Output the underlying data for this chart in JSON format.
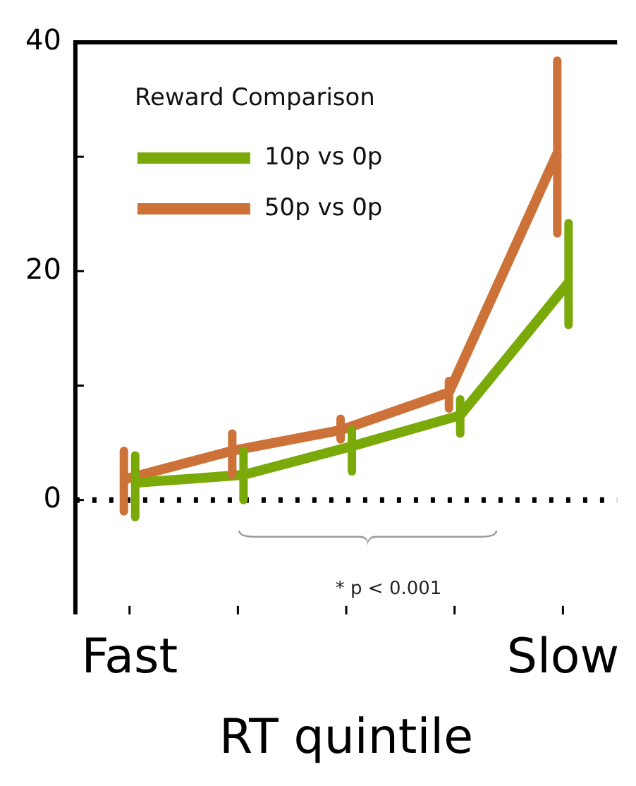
{
  "chart_data": {
    "type": "line",
    "xlabel": "RT quintile",
    "categories": [
      "Fast",
      null,
      null,
      null,
      "Slow"
    ],
    "legend_title": "Reward Comparison",
    "legend": "top left",
    "series": [
      {
        "name": "10p vs 0p",
        "color": "#7aaa0a",
        "values": [
          1.5,
          2.2,
          4.7,
          7.4,
          19
        ],
        "errors": [
          [
            -1.5,
            3.9
          ],
          [
            0,
            4.3
          ],
          [
            2.5,
            6.1
          ],
          [
            5.8,
            8.8
          ],
          [
            15.3,
            24.2
          ]
        ]
      },
      {
        "name": "50p vs 0p",
        "color": "#cc7238",
        "values": [
          1.8,
          4.3,
          6.1,
          9.4,
          30.3
        ],
        "errors": [
          [
            -1,
            4.3
          ],
          [
            2.2,
            5.8
          ],
          [
            5.3,
            7.1
          ],
          [
            8,
            10.4
          ],
          [
            23.3,
            38.4
          ]
        ]
      }
    ],
    "ylim": [
      -10,
      40
    ],
    "yticks": [
      0,
      {
        "value": 10,
        "label": null
      },
      20,
      {
        "value": 30,
        "label": null
      },
      40
    ],
    "ref_lines": [
      {
        "axis": "y",
        "value": 0,
        "color": "#000000",
        "line_style": "dotted"
      }
    ],
    "annotations": [
      "* p < 0.001"
    ],
    "grid": false,
    "marker": "none",
    "line_style": "solid"
  }
}
